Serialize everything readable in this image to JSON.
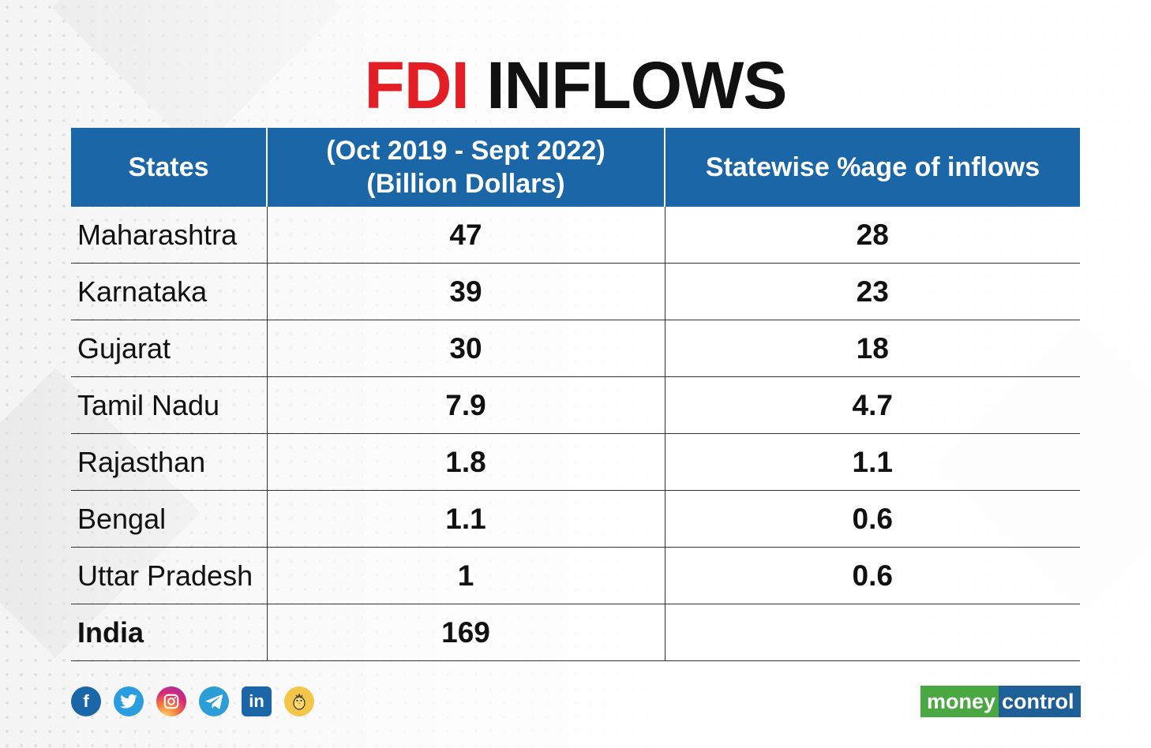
{
  "title": {
    "part1": "FDI",
    "part2": "INFLOWS"
  },
  "chart_data": {
    "type": "table",
    "columns": [
      "States",
      "(Oct 2019 - Sept 2022) (Billion Dollars)",
      "Statewise %age of inflows"
    ],
    "header_lines": {
      "col1": "States",
      "col2_line1": "(Oct 2019 - Sept 2022)",
      "col2_line2": "(Billion Dollars)",
      "col3": "Statewise %age of inflows"
    },
    "rows": [
      {
        "state": "Maharashtra",
        "billion_dollars": "47",
        "percent": "28"
      },
      {
        "state": "Karnataka",
        "billion_dollars": "39",
        "percent": "23"
      },
      {
        "state": "Gujarat",
        "billion_dollars": "30",
        "percent": "18"
      },
      {
        "state": "Tamil Nadu",
        "billion_dollars": "7.9",
        "percent": "4.7"
      },
      {
        "state": "Rajasthan",
        "billion_dollars": "1.8",
        "percent": "1.1"
      },
      {
        "state": "Bengal",
        "billion_dollars": "1.1",
        "percent": "0.6"
      },
      {
        "state": "Uttar Pradesh",
        "billion_dollars": "1",
        "percent": "0.6"
      },
      {
        "state": "India",
        "billion_dollars": "169",
        "percent": ""
      }
    ]
  },
  "footer": {
    "social_icons": [
      "facebook-icon",
      "twitter-icon",
      "instagram-icon",
      "telegram-icon",
      "linkedin-icon",
      "koo-icon"
    ],
    "logo": {
      "part1": "money",
      "part2": "control"
    }
  },
  "colors": {
    "title_red": "#e41e25",
    "header_blue": "#1b66a6",
    "logo_green": "#4aa843",
    "logo_blue": "#1d5f96"
  }
}
